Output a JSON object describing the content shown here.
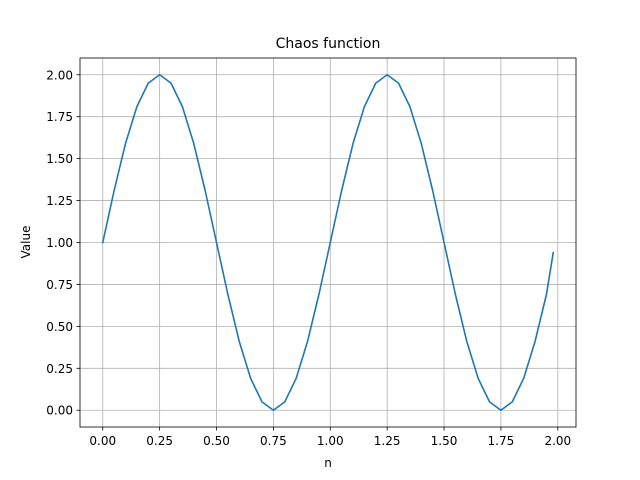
{
  "chart_data": {
    "type": "line",
    "title": "Chaos function",
    "xlabel": "n",
    "ylabel": "Value",
    "xlim": [
      -0.1,
      2.08
    ],
    "ylim": [
      -0.1,
      2.1
    ],
    "x_ticks": [
      0.0,
      0.25,
      0.5,
      0.75,
      1.0,
      1.25,
      1.5,
      1.75,
      2.0
    ],
    "x_tick_labels": [
      "0.00",
      "0.25",
      "0.50",
      "0.75",
      "1.00",
      "1.25",
      "1.50",
      "1.75",
      "2.00"
    ],
    "y_ticks": [
      0.0,
      0.25,
      0.5,
      0.75,
      1.0,
      1.25,
      1.5,
      1.75,
      2.0
    ],
    "y_tick_labels": [
      "0.00",
      "0.25",
      "0.50",
      "0.75",
      "1.00",
      "1.25",
      "1.50",
      "1.75",
      "2.00"
    ],
    "grid": true,
    "colors": {
      "line": "#1f77b4",
      "grid": "#b0b0b0",
      "axes": "#000000"
    },
    "series": [
      {
        "x": [
          0.0,
          0.05,
          0.1,
          0.15,
          0.2,
          0.25,
          0.3,
          0.35,
          0.4,
          0.45,
          0.5,
          0.55,
          0.6,
          0.65,
          0.7,
          0.75,
          0.8,
          0.85,
          0.9,
          0.95,
          1.0,
          1.05,
          1.1,
          1.15,
          1.2,
          1.25,
          1.3,
          1.35,
          1.4,
          1.45,
          1.5,
          1.55,
          1.6,
          1.65,
          1.7,
          1.75,
          1.8,
          1.85,
          1.9,
          1.95,
          1.98
        ],
        "y": [
          1.0,
          1.31,
          1.59,
          1.81,
          1.95,
          2.0,
          1.95,
          1.81,
          1.59,
          1.31,
          1.0,
          0.69,
          0.41,
          0.19,
          0.05,
          0.0,
          0.05,
          0.19,
          0.41,
          0.69,
          1.0,
          1.31,
          1.59,
          1.81,
          1.95,
          2.0,
          1.95,
          1.81,
          1.59,
          1.31,
          1.0,
          0.69,
          0.41,
          0.19,
          0.05,
          0.0,
          0.05,
          0.19,
          0.41,
          0.69,
          0.94
        ]
      }
    ]
  }
}
